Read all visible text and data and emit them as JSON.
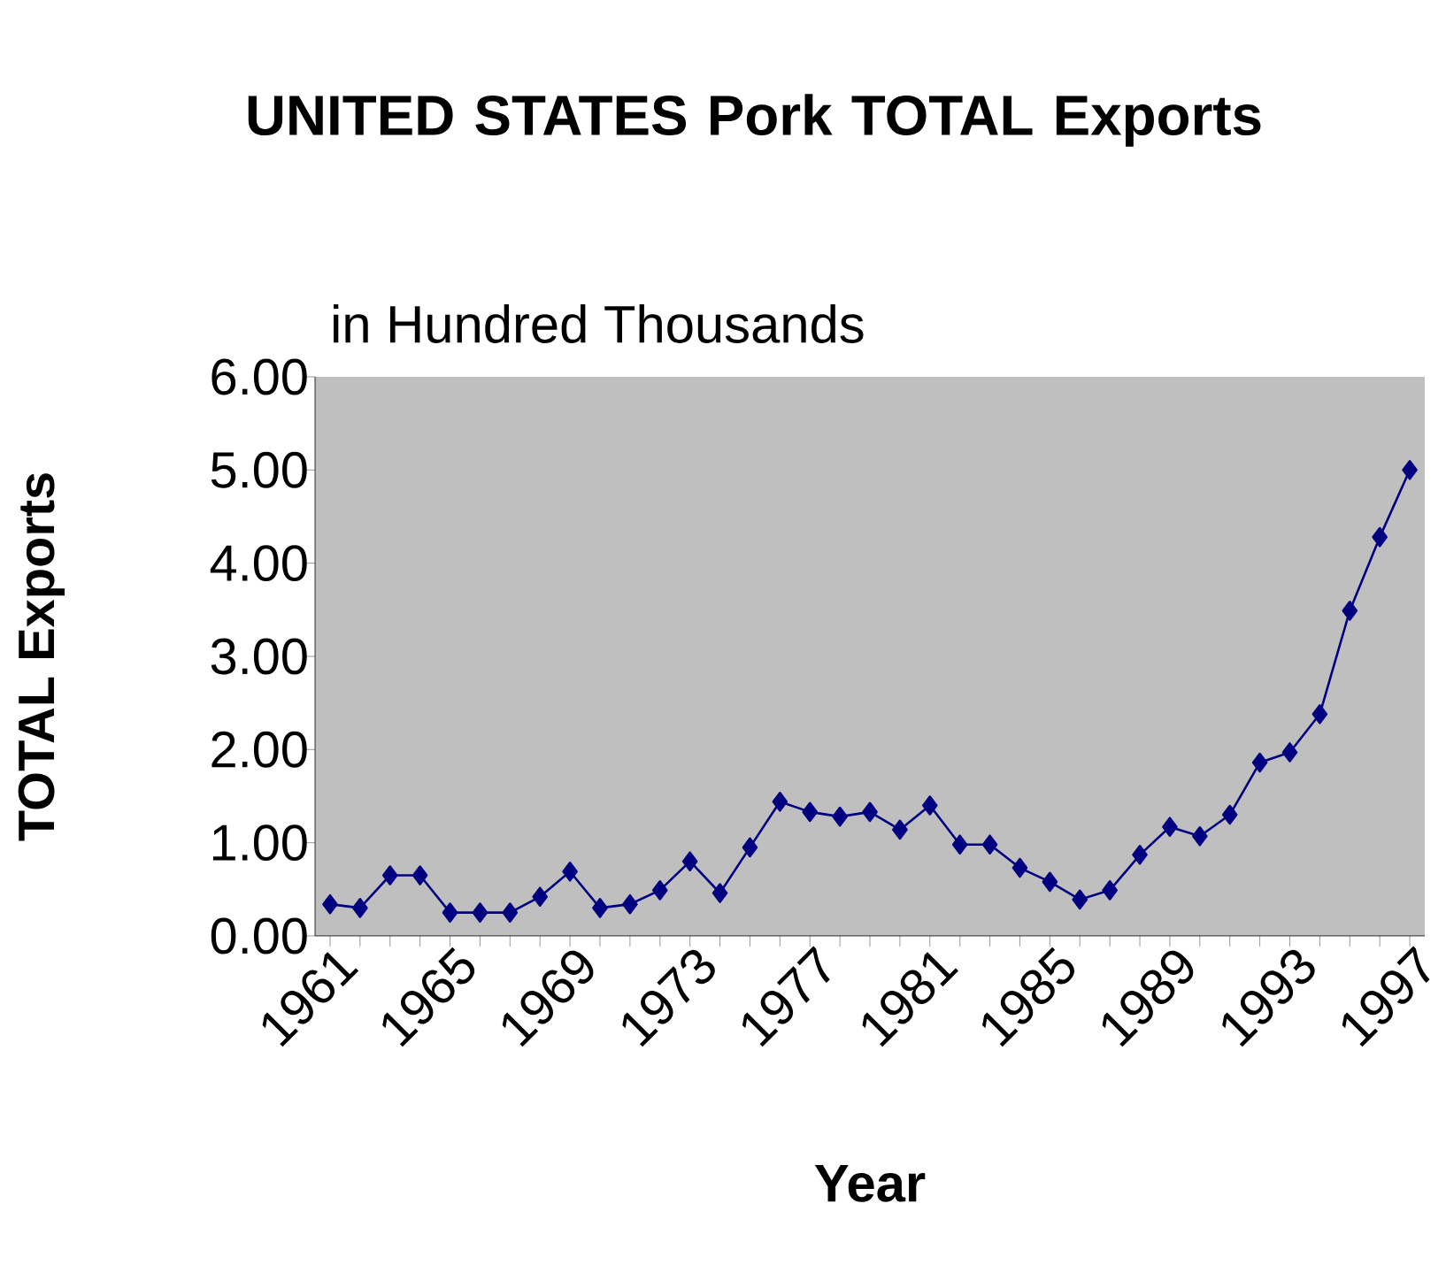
{
  "chart_data": {
    "type": "line",
    "title": "UNITED STATES Pork TOTAL Exports",
    "subtitle": "in Hundred Thousands",
    "xlabel": "Year",
    "ylabel": "TOTAL Exports",
    "categories": [
      "1961",
      null,
      null,
      null,
      "1965",
      null,
      null,
      null,
      "1969",
      null,
      null,
      null,
      "1973",
      null,
      null,
      null,
      "1977",
      null,
      null,
      null,
      "1981",
      null,
      null,
      null,
      "1985",
      null,
      null,
      null,
      "1989",
      null,
      null,
      null,
      "1993",
      null,
      null,
      null,
      "1997"
    ],
    "series": [
      {
        "color": "#000080",
        "values": [
          0.34,
          0.3,
          0.65,
          0.65,
          0.25,
          0.25,
          0.25,
          0.42,
          0.69,
          0.3,
          0.34,
          0.49,
          0.8,
          0.46,
          0.95,
          1.44,
          1.33,
          1.28,
          1.33,
          1.14,
          1.4,
          0.98,
          0.98,
          0.73,
          0.58,
          0.39,
          0.49,
          0.87,
          1.17,
          1.07,
          1.3,
          1.86,
          1.97,
          2.38,
          3.49,
          4.28,
          5.0
        ]
      }
    ],
    "ylim": [
      0,
      6
    ],
    "yticks": [
      {
        "value": 0,
        "label": "0.00"
      },
      {
        "value": 1,
        "label": "1.00"
      },
      {
        "value": 2,
        "label": "2.00"
      },
      {
        "value": 3,
        "label": "3.00"
      },
      {
        "value": 4,
        "label": "4.00"
      },
      {
        "value": 5,
        "label": "5.00"
      },
      {
        "value": 6,
        "label": "6.00"
      }
    ],
    "marker": "diamond",
    "line_style": "solid"
  }
}
